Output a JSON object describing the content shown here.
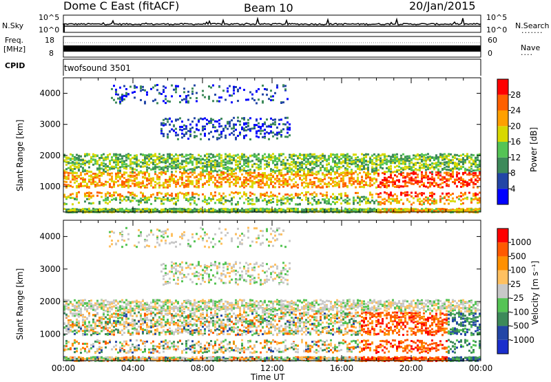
{
  "header": {
    "station": "Dome C East (fitACF)",
    "beam": "Beam 10",
    "date": "20/Jan/2015"
  },
  "info_panels": {
    "nsky_label": "N.Sky",
    "nsky_ticks": [
      "10^5",
      "10^0"
    ],
    "nsearch_label": "N.Search",
    "freq_label": "Freq.",
    "freq_unit": "[MHz]",
    "freq_ticks": [
      "18",
      "8"
    ],
    "nave_label": "Nave",
    "nave_ticks": [
      "60",
      "0"
    ],
    "cpid_label": "CPID",
    "cpid_value": "twofsound 3501"
  },
  "colors": {
    "power": [
      "#0000ff",
      "#2346a6",
      "#3d8a5a",
      "#55c455",
      "#d8d800",
      "#ffa000",
      "#ff6000",
      "#ff0000"
    ],
    "velocity": [
      "#ff0000",
      "#ff5a00",
      "#ff9000",
      "#ffc060",
      "#c8c8c8",
      "#55c455",
      "#3d8a5a",
      "#2346a6",
      "#1a2ecc"
    ]
  },
  "chart_data": [
    {
      "type": "heatmap",
      "xlabel": "",
      "ylabel": "Slant Range [km]",
      "x_ticks": [
        "00:00",
        "04:00",
        "08:00",
        "12:00",
        "16:00",
        "20:00",
        "00:00"
      ],
      "xlim_hours": [
        0,
        24
      ],
      "y_ticks": [
        1000,
        2000,
        3000,
        4000
      ],
      "ylim": [
        180,
        4500
      ],
      "colorbar": {
        "label": "Power [dB]",
        "ticks": [
          4,
          8,
          12,
          16,
          20,
          24,
          28
        ],
        "range": [
          0,
          32
        ]
      }
    },
    {
      "type": "heatmap",
      "xlabel": "Time UT",
      "ylabel": "Slant Range [km]",
      "x_ticks": [
        "00:00",
        "04:00",
        "08:00",
        "12:00",
        "16:00",
        "20:00",
        "00:00"
      ],
      "xlim_hours": [
        0,
        24
      ],
      "y_ticks": [
        1000,
        2000,
        3000,
        4000
      ],
      "ylim": [
        180,
        4500
      ],
      "colorbar": {
        "label": "Velocity [m s⁻¹]",
        "ticks": [
          1000,
          500,
          100,
          25,
          -25,
          -100,
          -500,
          -1000
        ]
      }
    }
  ]
}
